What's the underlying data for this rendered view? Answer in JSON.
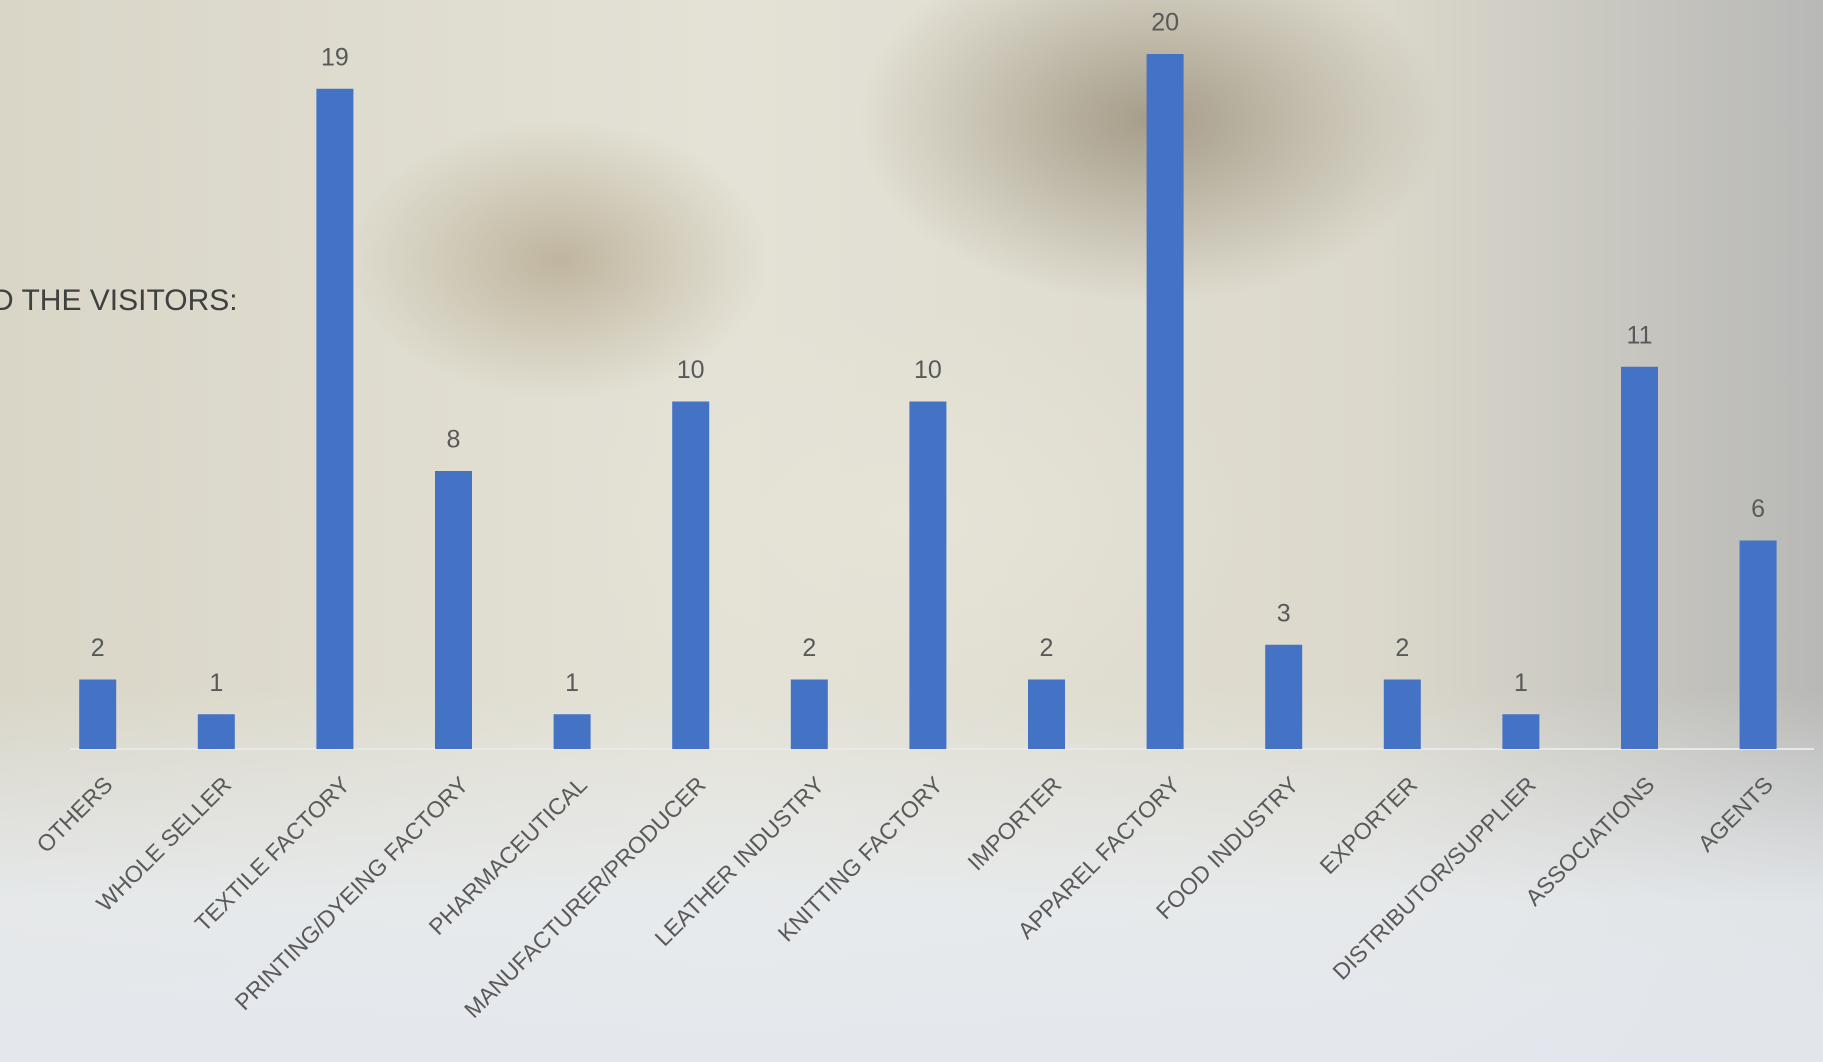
{
  "chart_data": {
    "type": "bar",
    "title": "D THE VISITORS:",
    "categories": [
      "OTHERS",
      "WHOLE SELLER",
      "TEXTILE FACTORY",
      "PRINTING/DYEING FACTORY",
      "PHARMACEUTICAL",
      "MANUFACTURER/PRODUCER",
      "LEATHER INDUSTRY",
      "KNITTING FACTORY",
      "IMPORTER",
      "APPAREL FACTORY",
      "FOOD INDUSTRY",
      "EXPORTER",
      "DISTRIBUTOR/SUPPLIER",
      "ASSOCIATIONS",
      "AGENTS"
    ],
    "values": [
      2,
      1,
      19,
      8,
      1,
      10,
      2,
      10,
      2,
      20,
      3,
      2,
      1,
      11,
      6
    ],
    "color": "#4472c4",
    "ylim": [
      0,
      20
    ]
  }
}
